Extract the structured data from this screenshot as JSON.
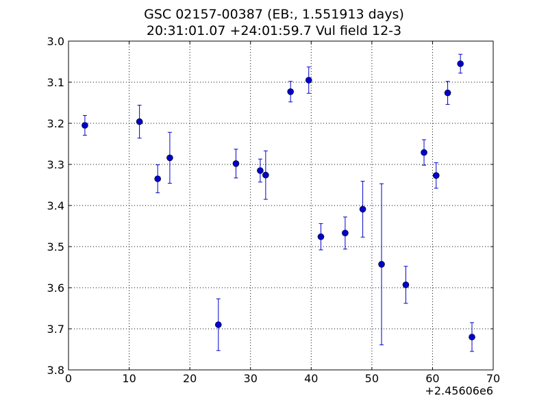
{
  "chart_data": {
    "type": "scatter",
    "title": "GSC 02157-00387 (EB:, 1.551913 days)",
    "subtitle": "20:31:01.07 +24:01:59.7 Vul field 12-3",
    "xlabel": "",
    "ylabel": "",
    "x_offset_label": "+2.45606e6",
    "xlim": [
      0,
      70
    ],
    "ylim": [
      3.8,
      3.0
    ],
    "y_inverted": true,
    "grid": true,
    "x_ticks": [
      "0",
      "10",
      "20",
      "30",
      "40",
      "50",
      "60",
      "70"
    ],
    "y_ticks": [
      "3.0",
      "3.1",
      "3.2",
      "3.3",
      "3.4",
      "3.5",
      "3.6",
      "3.7",
      "3.8"
    ],
    "marker_color": "#0000cc",
    "points": [
      {
        "x": 2.7,
        "y": 3.205,
        "err": 0.024
      },
      {
        "x": 11.7,
        "y": 3.196,
        "err": 0.04
      },
      {
        "x": 14.7,
        "y": 3.335,
        "err": 0.034
      },
      {
        "x": 16.7,
        "y": 3.284,
        "err": 0.062
      },
      {
        "x": 24.7,
        "y": 3.69,
        "err": 0.063
      },
      {
        "x": 27.6,
        "y": 3.298,
        "err": 0.035
      },
      {
        "x": 31.6,
        "y": 3.315,
        "err": 0.028
      },
      {
        "x": 32.5,
        "y": 3.326,
        "err": 0.059
      },
      {
        "x": 36.6,
        "y": 3.123,
        "err": 0.025
      },
      {
        "x": 39.6,
        "y": 3.095,
        "err": 0.032
      },
      {
        "x": 41.6,
        "y": 3.476,
        "err": 0.032
      },
      {
        "x": 45.6,
        "y": 3.467,
        "err": 0.039
      },
      {
        "x": 48.5,
        "y": 3.409,
        "err": 0.068
      },
      {
        "x": 51.6,
        "y": 3.543,
        "err": 0.196
      },
      {
        "x": 55.6,
        "y": 3.593,
        "err": 0.045
      },
      {
        "x": 58.6,
        "y": 3.271,
        "err": 0.031
      },
      {
        "x": 60.6,
        "y": 3.327,
        "err": 0.031
      },
      {
        "x": 62.5,
        "y": 3.126,
        "err": 0.028
      },
      {
        "x": 64.6,
        "y": 3.055,
        "err": 0.023
      },
      {
        "x": 66.5,
        "y": 3.72,
        "err": 0.035
      }
    ]
  }
}
